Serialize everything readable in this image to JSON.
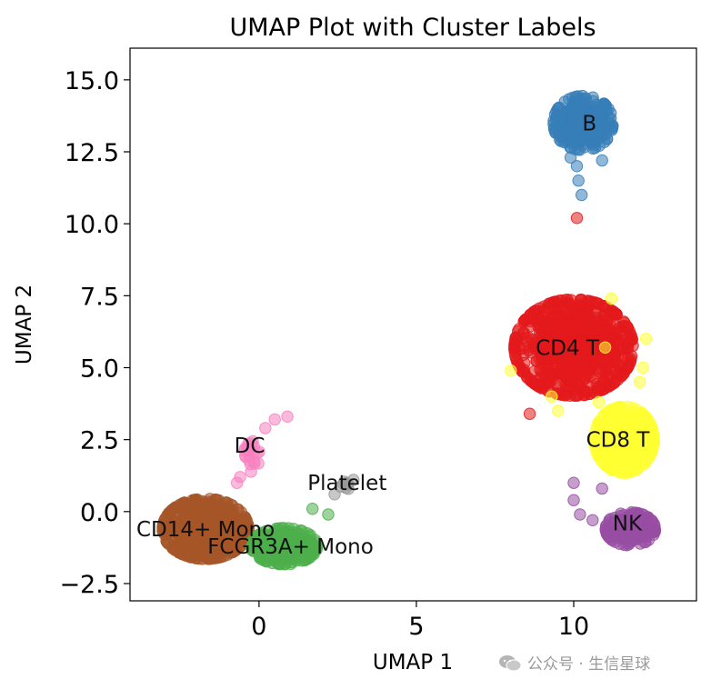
{
  "chart_data": {
    "type": "scatter",
    "title": "UMAP Plot with Cluster Labels",
    "xlabel": "UMAP 1",
    "ylabel": "UMAP 2",
    "xlim": [
      -4.1,
      13.9
    ],
    "ylim": [
      -3.1,
      16.1
    ],
    "xticks": [
      {
        "value": 0,
        "label": "0"
      },
      {
        "value": 5,
        "label": "5"
      },
      {
        "value": 10,
        "label": "10"
      }
    ],
    "yticks": [
      {
        "value": -2.5,
        "label": "−2.5"
      },
      {
        "value": 0.0,
        "label": "0.0"
      },
      {
        "value": 2.5,
        "label": "2.5"
      },
      {
        "value": 5.0,
        "label": "5.0"
      },
      {
        "value": 7.5,
        "label": "7.5"
      },
      {
        "value": 10.0,
        "label": "10.0"
      },
      {
        "value": 12.5,
        "label": "12.5"
      },
      {
        "value": 15.0,
        "label": "15.0"
      }
    ],
    "grid": false,
    "point_alpha": 0.55,
    "clusters": [
      {
        "label": "B",
        "color": "#377eb8",
        "center": [
          10.3,
          13.5
        ],
        "spread": [
          0.9,
          0.9
        ],
        "n": 260,
        "label_pos": [
          10.5,
          13.5
        ],
        "extra_points": [
          [
            10.1,
            12.0
          ],
          [
            10.15,
            11.5
          ],
          [
            10.25,
            11.0
          ],
          [
            9.9,
            12.3
          ],
          [
            9.6,
            13.2
          ],
          [
            10.9,
            12.2
          ]
        ]
      },
      {
        "label": "CD4 T",
        "color": "#e41a1c",
        "center": [
          10.0,
          5.7
        ],
        "spread": [
          1.8,
          1.6
        ],
        "n": 800,
        "label_pos": [
          9.8,
          5.7
        ],
        "extra_points": [
          [
            10.1,
            10.2
          ],
          [
            8.6,
            3.4
          ]
        ]
      },
      {
        "label": "CD8 T",
        "color": "#ffff33",
        "center": [
          11.6,
          2.5
        ],
        "spread": [
          0.9,
          1.1
        ],
        "n": 420,
        "label_pos": [
          11.4,
          2.5
        ],
        "extra_points": [
          [
            12.3,
            6.0
          ],
          [
            12.2,
            5.0
          ],
          [
            11.2,
            7.4
          ],
          [
            8.0,
            4.9
          ],
          [
            9.3,
            4.0
          ],
          [
            11.0,
            5.7
          ],
          [
            12.1,
            4.5
          ],
          [
            10.8,
            3.8
          ],
          [
            9.5,
            3.5
          ]
        ]
      },
      {
        "label": "NK",
        "color": "#984ea3",
        "center": [
          11.8,
          -0.6
        ],
        "spread": [
          0.75,
          0.55
        ],
        "n": 200,
        "label_pos": [
          11.7,
          -0.4
        ],
        "extra_points": [
          [
            10.0,
            1.0
          ],
          [
            10.0,
            0.4
          ],
          [
            10.2,
            -0.1
          ],
          [
            10.6,
            -0.3
          ],
          [
            10.9,
            0.8
          ]
        ]
      },
      {
        "label": "DC",
        "color": "#f781bf",
        "center": [
          -0.2,
          2.0
        ],
        "spread": [
          0.25,
          0.6
        ],
        "n": 22,
        "label_pos": [
          -0.3,
          2.3
        ],
        "extra_points": [
          [
            -0.6,
            1.2
          ],
          [
            -0.7,
            1.0
          ],
          [
            0.2,
            2.9
          ],
          [
            0.5,
            3.2
          ],
          [
            0.9,
            3.3
          ]
        ]
      },
      {
        "label": "Platelet",
        "color": "#999999",
        "center": [
          2.7,
          0.9
        ],
        "spread": [
          0.25,
          0.2
        ],
        "n": 8,
        "label_pos": [
          2.8,
          1.0
        ],
        "extra_points": [
          [
            2.4,
            0.6
          ],
          [
            3.0,
            1.1
          ]
        ]
      },
      {
        "label": "CD14+ Mono",
        "color": "#a65628",
        "center": [
          -1.7,
          -0.6
        ],
        "spread": [
          1.3,
          1.0
        ],
        "n": 650,
        "label_pos": [
          -1.7,
          -0.6
        ],
        "extra_points": []
      },
      {
        "label": "FCGR3A+ Mono",
        "color": "#4daf4a",
        "center": [
          0.8,
          -1.2
        ],
        "spread": [
          1.0,
          0.6
        ],
        "n": 260,
        "label_pos": [
          1.0,
          -1.2
        ],
        "extra_points": [
          [
            1.7,
            0.1
          ],
          [
            2.2,
            -0.1
          ]
        ]
      }
    ]
  },
  "watermark": {
    "text": "公众号 · 生信星球",
    "icon": "wechat-icon"
  }
}
